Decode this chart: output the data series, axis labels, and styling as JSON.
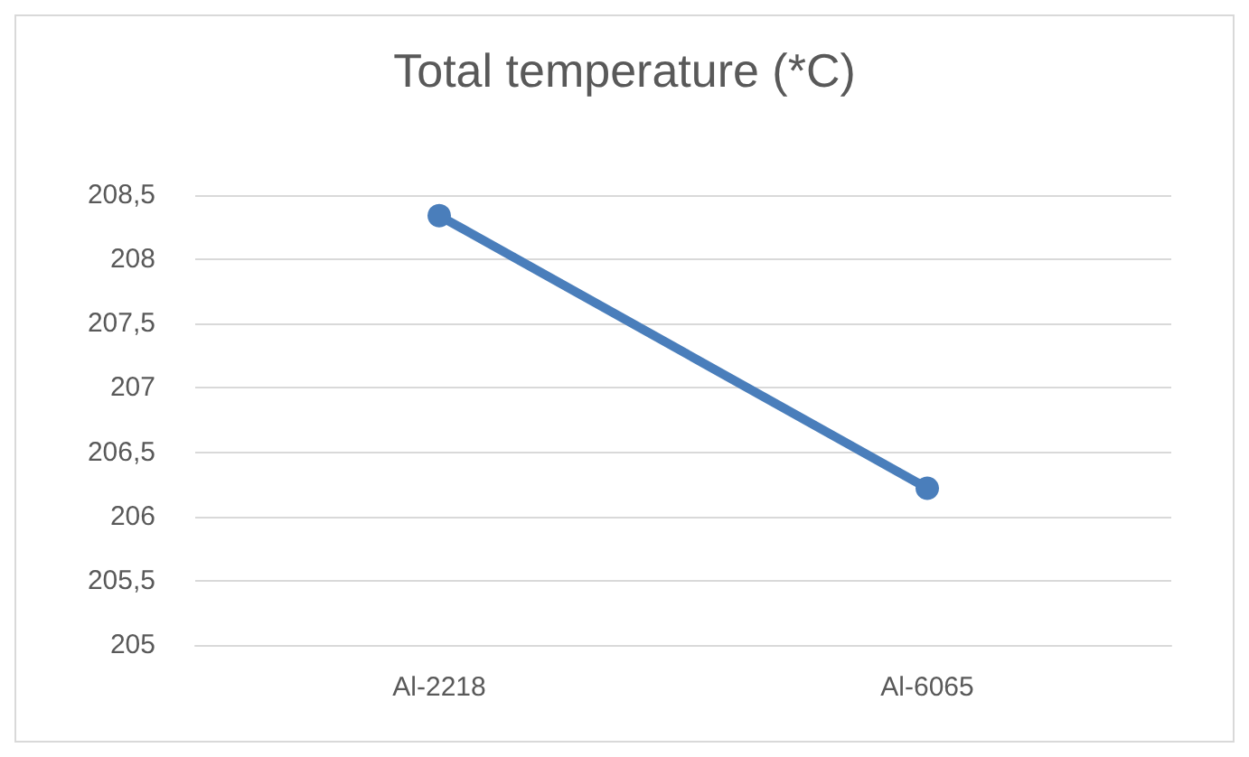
{
  "chart_data": {
    "type": "line",
    "title": "Total temperature (*C)",
    "categories": [
      "Al-2218",
      "Al-6065"
    ],
    "series": [
      {
        "color": "#4a7ebb",
        "values": [
          208.34,
          206.22
        ]
      }
    ],
    "ylim": [
      205,
      208.5
    ],
    "yticks": [
      205,
      {
        "value": 205.5,
        "label": "205,5"
      },
      206,
      {
        "value": 206.5,
        "label": "206,5"
      },
      207,
      {
        "value": 207.5,
        "label": "207,5"
      },
      208,
      {
        "value": 208.5,
        "label": "208,5"
      }
    ],
    "grid": "y",
    "marker": "circle",
    "line_style": "solid"
  }
}
